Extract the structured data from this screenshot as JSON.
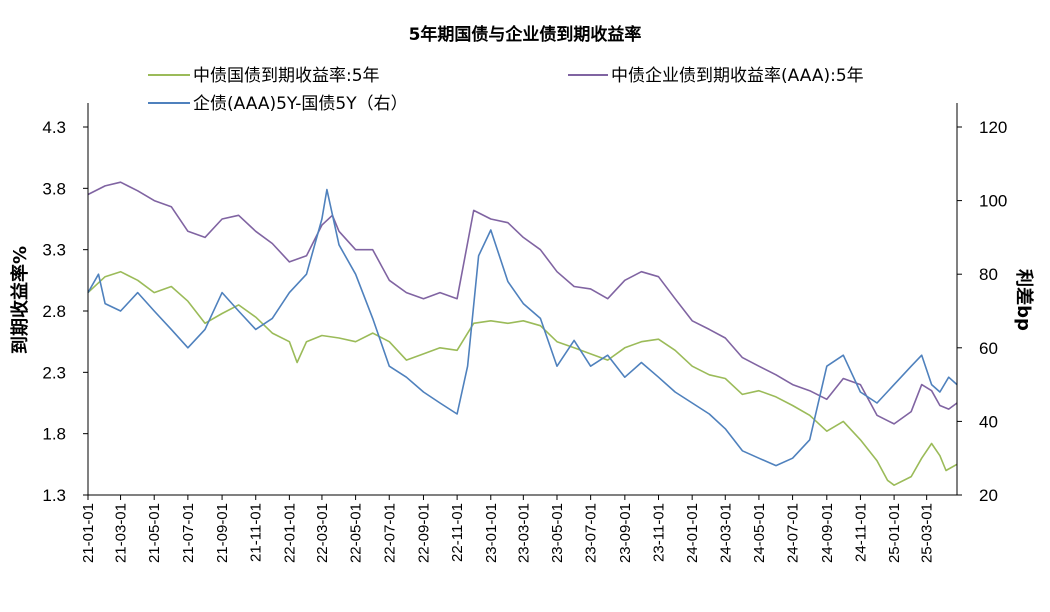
{
  "chart_data": {
    "type": "line",
    "title": "5年期国债与企业债到期收益率",
    "ylabel_left": "到期收益率%",
    "ylabel_right": "利差bp",
    "y_left": {
      "min": 1.3,
      "max": 4.3,
      "ticks": [
        "4.3",
        "3.8",
        "3.3",
        "2.8",
        "2.3",
        "1.8",
        "1.3"
      ]
    },
    "y_right": {
      "min": 20,
      "max": 120,
      "ticks": [
        "120",
        "100",
        "80",
        "60",
        "40",
        "20"
      ]
    },
    "x_range": [
      "2021-01-01",
      "2025-04-25"
    ],
    "x_ticks": [
      "21-01-01",
      "21-03-01",
      "21-05-01",
      "21-07-01",
      "21-09-01",
      "21-11-01",
      "22-01-01",
      "22-03-01",
      "22-05-01",
      "22-07-01",
      "22-09-01",
      "22-11-01",
      "23-01-01",
      "23-03-01",
      "23-05-01",
      "23-07-01",
      "23-09-01",
      "23-11-01",
      "24-01-01",
      "24-03-01",
      "24-05-01",
      "24-07-01",
      "24-09-01",
      "24-11-01",
      "25-01-01",
      "25-03-01"
    ],
    "legend_position": "top",
    "grid": false,
    "series": [
      {
        "name": "中债国债到期收益率:5年",
        "axis": "left",
        "color": "#9BBB59",
        "points": [
          [
            "2021-01-01",
            2.95
          ],
          [
            "2021-02-01",
            3.08
          ],
          [
            "2021-03-01",
            3.12
          ],
          [
            "2021-04-01",
            3.05
          ],
          [
            "2021-05-01",
            2.95
          ],
          [
            "2021-06-01",
            3.0
          ],
          [
            "2021-07-01",
            2.88
          ],
          [
            "2021-08-01",
            2.7
          ],
          [
            "2021-09-01",
            2.78
          ],
          [
            "2021-10-01",
            2.85
          ],
          [
            "2021-11-01",
            2.75
          ],
          [
            "2021-12-01",
            2.62
          ],
          [
            "2022-01-01",
            2.55
          ],
          [
            "2022-01-15",
            2.38
          ],
          [
            "2022-02-01",
            2.55
          ],
          [
            "2022-03-01",
            2.6
          ],
          [
            "2022-04-01",
            2.58
          ],
          [
            "2022-05-01",
            2.55
          ],
          [
            "2022-06-01",
            2.62
          ],
          [
            "2022-07-01",
            2.55
          ],
          [
            "2022-08-01",
            2.4
          ],
          [
            "2022-09-01",
            2.45
          ],
          [
            "2022-10-01",
            2.5
          ],
          [
            "2022-11-01",
            2.48
          ],
          [
            "2022-12-01",
            2.7
          ],
          [
            "2023-01-01",
            2.72
          ],
          [
            "2023-02-01",
            2.7
          ],
          [
            "2023-03-01",
            2.72
          ],
          [
            "2023-04-01",
            2.68
          ],
          [
            "2023-05-01",
            2.55
          ],
          [
            "2023-06-01",
            2.5
          ],
          [
            "2023-07-01",
            2.45
          ],
          [
            "2023-08-01",
            2.4
          ],
          [
            "2023-09-01",
            2.5
          ],
          [
            "2023-10-01",
            2.55
          ],
          [
            "2023-11-01",
            2.57
          ],
          [
            "2023-12-01",
            2.48
          ],
          [
            "2024-01-01",
            2.35
          ],
          [
            "2024-02-01",
            2.28
          ],
          [
            "2024-03-01",
            2.25
          ],
          [
            "2024-04-01",
            2.12
          ],
          [
            "2024-05-01",
            2.15
          ],
          [
            "2024-06-01",
            2.1
          ],
          [
            "2024-07-01",
            2.03
          ],
          [
            "2024-08-01",
            1.95
          ],
          [
            "2024-09-01",
            1.82
          ],
          [
            "2024-10-01",
            1.9
          ],
          [
            "2024-11-01",
            1.75
          ],
          [
            "2024-12-01",
            1.58
          ],
          [
            "2024-12-20",
            1.42
          ],
          [
            "2025-01-01",
            1.38
          ],
          [
            "2025-02-01",
            1.45
          ],
          [
            "2025-02-20",
            1.6
          ],
          [
            "2025-03-10",
            1.72
          ],
          [
            "2025-03-25",
            1.62
          ],
          [
            "2025-04-05",
            1.5
          ],
          [
            "2025-04-25",
            1.55
          ]
        ]
      },
      {
        "name": "中债企业债到期收益率(AAA):5年",
        "axis": "left",
        "color": "#8064A2",
        "points": [
          [
            "2021-01-01",
            3.75
          ],
          [
            "2021-02-01",
            3.82
          ],
          [
            "2021-03-01",
            3.85
          ],
          [
            "2021-04-01",
            3.78
          ],
          [
            "2021-05-01",
            3.7
          ],
          [
            "2021-06-01",
            3.65
          ],
          [
            "2021-07-01",
            3.45
          ],
          [
            "2021-08-01",
            3.4
          ],
          [
            "2021-09-01",
            3.55
          ],
          [
            "2021-10-01",
            3.58
          ],
          [
            "2021-11-01",
            3.45
          ],
          [
            "2021-12-01",
            3.35
          ],
          [
            "2022-01-01",
            3.2
          ],
          [
            "2022-02-01",
            3.25
          ],
          [
            "2022-03-01",
            3.5
          ],
          [
            "2022-03-20",
            3.58
          ],
          [
            "2022-04-01",
            3.45
          ],
          [
            "2022-05-01",
            3.3
          ],
          [
            "2022-06-01",
            3.3
          ],
          [
            "2022-07-01",
            3.05
          ],
          [
            "2022-08-01",
            2.95
          ],
          [
            "2022-09-01",
            2.9
          ],
          [
            "2022-10-01",
            2.95
          ],
          [
            "2022-11-01",
            2.9
          ],
          [
            "2022-12-01",
            3.62
          ],
          [
            "2023-01-01",
            3.55
          ],
          [
            "2023-02-01",
            3.52
          ],
          [
            "2023-03-01",
            3.4
          ],
          [
            "2023-04-01",
            3.3
          ],
          [
            "2023-05-01",
            3.12
          ],
          [
            "2023-06-01",
            3.0
          ],
          [
            "2023-07-01",
            2.98
          ],
          [
            "2023-08-01",
            2.9
          ],
          [
            "2023-09-01",
            3.05
          ],
          [
            "2023-10-01",
            3.12
          ],
          [
            "2023-11-01",
            3.08
          ],
          [
            "2023-12-01",
            2.9
          ],
          [
            "2024-01-01",
            2.72
          ],
          [
            "2024-02-01",
            2.65
          ],
          [
            "2024-03-01",
            2.58
          ],
          [
            "2024-04-01",
            2.42
          ],
          [
            "2024-05-01",
            2.35
          ],
          [
            "2024-06-01",
            2.28
          ],
          [
            "2024-07-01",
            2.2
          ],
          [
            "2024-08-01",
            2.15
          ],
          [
            "2024-09-01",
            2.08
          ],
          [
            "2024-10-01",
            2.25
          ],
          [
            "2024-11-01",
            2.2
          ],
          [
            "2024-12-01",
            1.95
          ],
          [
            "2025-01-01",
            1.88
          ],
          [
            "2025-02-01",
            1.98
          ],
          [
            "2025-02-20",
            2.2
          ],
          [
            "2025-03-10",
            2.15
          ],
          [
            "2025-03-25",
            2.03
          ],
          [
            "2025-04-10",
            2.0
          ],
          [
            "2025-04-25",
            2.05
          ]
        ]
      },
      {
        "name": "企债(AAA)5Y-国债5Y（右）",
        "axis": "right",
        "color": "#4F81BD",
        "points": [
          [
            "2021-01-01",
            75
          ],
          [
            "2021-01-20",
            80
          ],
          [
            "2021-02-01",
            72
          ],
          [
            "2021-03-01",
            70
          ],
          [
            "2021-04-01",
            75
          ],
          [
            "2021-05-01",
            70
          ],
          [
            "2021-06-01",
            65
          ],
          [
            "2021-07-01",
            60
          ],
          [
            "2021-08-01",
            65
          ],
          [
            "2021-09-01",
            75
          ],
          [
            "2021-10-01",
            70
          ],
          [
            "2021-11-01",
            65
          ],
          [
            "2021-12-01",
            68
          ],
          [
            "2022-01-01",
            75
          ],
          [
            "2022-02-01",
            80
          ],
          [
            "2022-03-01",
            95
          ],
          [
            "2022-03-10",
            103
          ],
          [
            "2022-04-01",
            88
          ],
          [
            "2022-05-01",
            80
          ],
          [
            "2022-06-01",
            68
          ],
          [
            "2022-07-01",
            55
          ],
          [
            "2022-08-01",
            52
          ],
          [
            "2022-09-01",
            48
          ],
          [
            "2022-10-01",
            45
          ],
          [
            "2022-11-01",
            42
          ],
          [
            "2022-11-20",
            55
          ],
          [
            "2022-12-10",
            85
          ],
          [
            "2023-01-01",
            92
          ],
          [
            "2023-02-01",
            78
          ],
          [
            "2023-03-01",
            72
          ],
          [
            "2023-04-01",
            68
          ],
          [
            "2023-05-01",
            55
          ],
          [
            "2023-06-01",
            62
          ],
          [
            "2023-07-01",
            55
          ],
          [
            "2023-08-01",
            58
          ],
          [
            "2023-09-01",
            52
          ],
          [
            "2023-10-01",
            56
          ],
          [
            "2023-11-01",
            52
          ],
          [
            "2023-12-01",
            48
          ],
          [
            "2024-01-01",
            45
          ],
          [
            "2024-02-01",
            42
          ],
          [
            "2024-03-01",
            38
          ],
          [
            "2024-04-01",
            32
          ],
          [
            "2024-05-01",
            30
          ],
          [
            "2024-06-01",
            28
          ],
          [
            "2024-07-01",
            30
          ],
          [
            "2024-08-01",
            35
          ],
          [
            "2024-09-01",
            55
          ],
          [
            "2024-10-01",
            58
          ],
          [
            "2024-11-01",
            48
          ],
          [
            "2024-12-01",
            45
          ],
          [
            "2025-01-01",
            50
          ],
          [
            "2025-02-01",
            55
          ],
          [
            "2025-02-20",
            58
          ],
          [
            "2025-03-10",
            50
          ],
          [
            "2025-03-25",
            48
          ],
          [
            "2025-04-10",
            52
          ],
          [
            "2025-04-25",
            50
          ]
        ]
      }
    ]
  }
}
